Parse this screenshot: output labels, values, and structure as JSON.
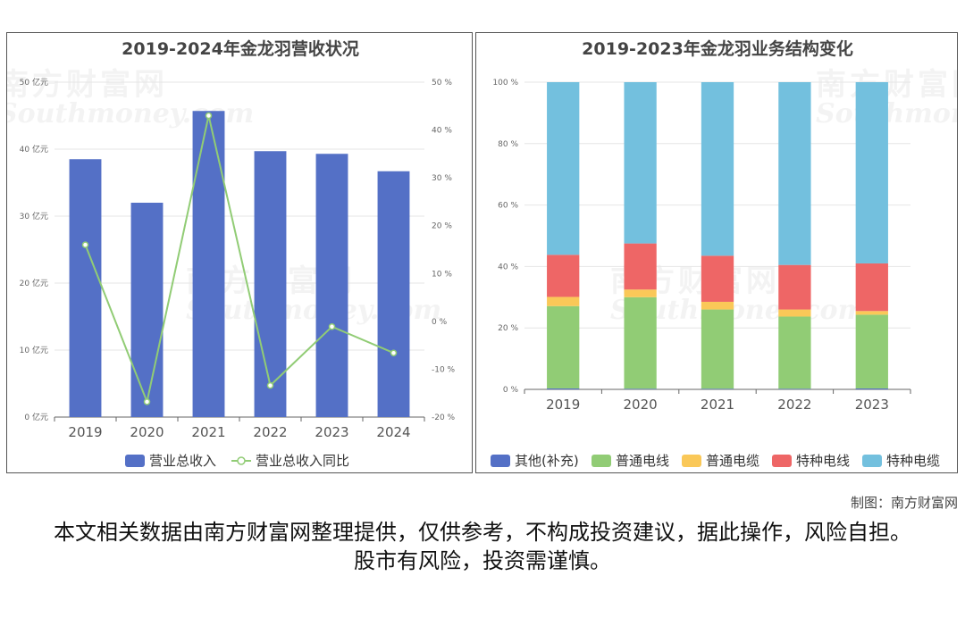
{
  "watermark": {
    "cn": "南方财富网",
    "en": "Southmoney.com"
  },
  "credit": "制图：南方财富网",
  "disclaimer": "本文相关数据由南方财富网整理提供，仅供参考，不构成投资建议，据此操作，风险自担。股市有风险，投资需谨慎。",
  "chart_data": [
    {
      "type": "bar",
      "title": "2019-2024年金龙羽营收状况",
      "categories": [
        "2019",
        "2020",
        "2021",
        "2022",
        "2023",
        "2024"
      ],
      "left_ticks": [
        "0 亿元",
        "10 亿元",
        "20 亿元",
        "30 亿元",
        "40 亿元",
        "50 亿元"
      ],
      "right_ticks": [
        "-20 %",
        "-10 %",
        "0 %",
        "10 %",
        "20 %",
        "30 %",
        "40 %",
        "50 %"
      ],
      "ylim": [
        0,
        50
      ],
      "y2lim": [
        -20,
        50
      ],
      "legend_position": "bottom",
      "series": [
        {
          "name": "营业总收入",
          "type": "bar",
          "axis": "left",
          "color": "#5470c6",
          "values": [
            38.5,
            32.0,
            45.7,
            39.7,
            39.3,
            36.7
          ]
        },
        {
          "name": "营业总收入同比",
          "type": "line",
          "axis": "right",
          "color": "#91cc75",
          "values": [
            16.0,
            -16.8,
            43.0,
            -13.4,
            -1.1,
            -6.6
          ]
        }
      ]
    },
    {
      "type": "bar",
      "stacked": true,
      "title": "2019-2023年金龙羽业务结构变化",
      "categories": [
        "2019",
        "2020",
        "2021",
        "2022",
        "2023"
      ],
      "y_ticks": [
        "0 %",
        "20 %",
        "40 %",
        "60 %",
        "80 %",
        "100 %"
      ],
      "ylim": [
        0,
        100
      ],
      "legend_position": "bottom",
      "series": [
        {
          "name": "其他(补充)",
          "color": "#5470c6",
          "values": [
            0.3,
            0.2,
            0.2,
            0.2,
            0.3
          ]
        },
        {
          "name": "普通电线",
          "color": "#91cc75",
          "values": [
            26.8,
            29.8,
            25.8,
            23.5,
            24.0
          ]
        },
        {
          "name": "普通电缆",
          "color": "#fac858",
          "values": [
            3.0,
            2.5,
            2.5,
            2.3,
            1.2
          ]
        },
        {
          "name": "特种电线",
          "color": "#ee6666",
          "values": [
            13.7,
            15.0,
            15.0,
            14.5,
            15.5
          ]
        },
        {
          "name": "特种电缆",
          "color": "#73c0de",
          "values": [
            56.2,
            52.5,
            56.5,
            59.5,
            59.0
          ]
        }
      ]
    }
  ]
}
